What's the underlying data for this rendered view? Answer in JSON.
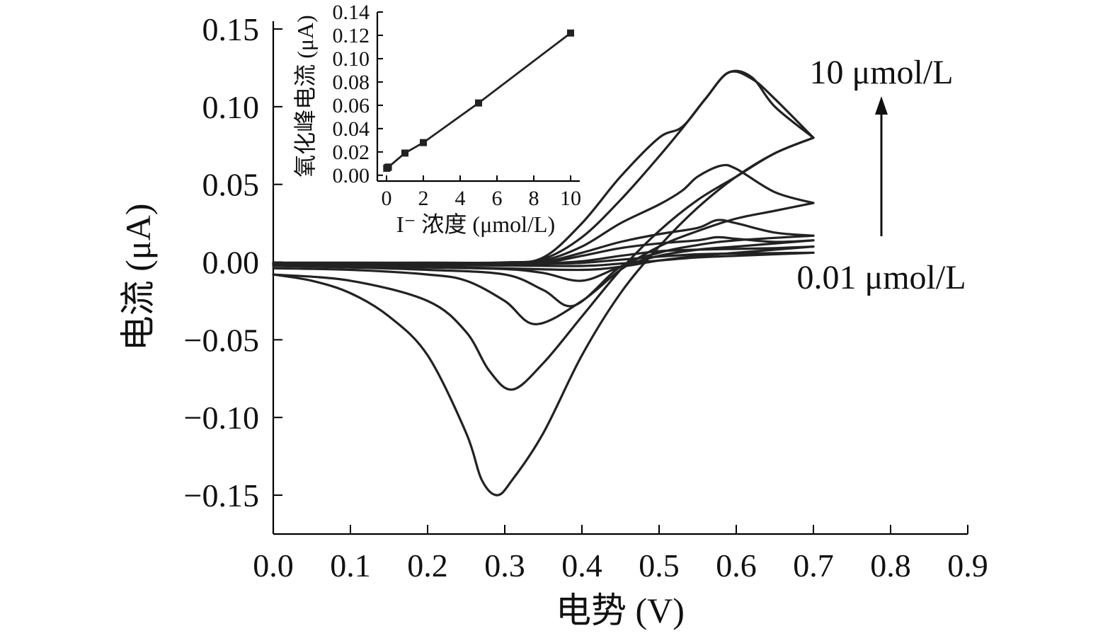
{
  "chart_data": [
    {
      "type": "line",
      "role": "main",
      "xlabel": "电势 (V)",
      "ylabel": "电流 (μA)",
      "xlim": [
        0.0,
        0.9
      ],
      "ylim": [
        -0.175,
        0.155
      ],
      "xticks": [
        "0.0",
        "0.1",
        "0.2",
        "0.3",
        "0.4",
        "0.5",
        "0.6",
        "0.7",
        "0.8",
        "0.9"
      ],
      "xtick_values": [
        0.0,
        0.1,
        0.2,
        0.3,
        0.4,
        0.5,
        0.6,
        0.7,
        0.8,
        0.9
      ],
      "yticks": [
        "0.15",
        "0.10",
        "0.05",
        "0.00",
        "−0.05",
        "−0.10",
        "−0.15"
      ],
      "ytick_values": [
        0.15,
        0.1,
        0.05,
        0.0,
        -0.05,
        -0.1,
        -0.15
      ],
      "annotations": {
        "top": "10 μmol/L",
        "bottom": "0.01 μmol/L"
      },
      "series": [
        {
          "forward": [
            [
              0,
              -0.001
            ],
            [
              0.1,
              -0.0012
            ],
            [
              0.2,
              -0.0012
            ],
            [
              0.3,
              -0.0012
            ],
            [
              0.35,
              -0.0011
            ],
            [
              0.4,
              -0.0005
            ],
            [
              0.45,
              0.0015
            ],
            [
              0.5,
              0.0035
            ],
            [
              0.55,
              0.005
            ],
            [
              0.6,
              0.0055
            ],
            [
              0.65,
              0.0058
            ],
            [
              0.7,
              0.006
            ]
          ],
          "reverse": [
            [
              0.7,
              0.006
            ],
            [
              0.6,
              0.004
            ],
            [
              0.55,
              0.003
            ],
            [
              0.5,
              0.001
            ],
            [
              0.45,
              -0.001
            ],
            [
              0.4,
              -0.0025
            ],
            [
              0.3,
              -0.0022
            ],
            [
              0.2,
              -0.002
            ],
            [
              0.1,
              -0.0018
            ],
            [
              0,
              -0.0015
            ]
          ]
        },
        {
          "forward": [
            [
              0,
              -0.001
            ],
            [
              0.1,
              -0.0011
            ],
            [
              0.2,
              -0.0011
            ],
            [
              0.3,
              -0.001
            ],
            [
              0.35,
              -0.0008
            ],
            [
              0.4,
              0.0005
            ],
            [
              0.45,
              0.004
            ],
            [
              0.5,
              0.007
            ],
            [
              0.55,
              0.008
            ],
            [
              0.6,
              0.0085
            ],
            [
              0.65,
              0.009
            ],
            [
              0.7,
              0.01
            ]
          ],
          "reverse": [
            [
              0.7,
              0.01
            ],
            [
              0.6,
              0.006
            ],
            [
              0.55,
              0.004
            ],
            [
              0.5,
              0.001
            ],
            [
              0.45,
              -0.003
            ],
            [
              0.4,
              -0.005
            ],
            [
              0.3,
              -0.004
            ],
            [
              0.2,
              -0.003
            ],
            [
              0.1,
              -0.0022
            ],
            [
              0,
              -0.0018
            ]
          ]
        },
        {
          "forward": [
            [
              0,
              -0.0009
            ],
            [
              0.1,
              -0.0009
            ],
            [
              0.2,
              -0.0009
            ],
            [
              0.3,
              -0.0008
            ],
            [
              0.35,
              -0.0004
            ],
            [
              0.4,
              0.004
            ],
            [
              0.45,
              0.009
            ],
            [
              0.5,
              0.012
            ],
            [
              0.55,
              0.014
            ],
            [
              0.575,
              0.016
            ],
            [
              0.6,
              0.015
            ],
            [
              0.65,
              0.013
            ],
            [
              0.7,
              0.014
            ]
          ],
          "reverse": [
            [
              0.7,
              0.014
            ],
            [
              0.6,
              0.01
            ],
            [
              0.55,
              0.008
            ],
            [
              0.5,
              0.004
            ],
            [
              0.45,
              -0.003
            ],
            [
              0.4,
              -0.012
            ],
            [
              0.35,
              -0.007
            ],
            [
              0.3,
              -0.0045
            ],
            [
              0.2,
              -0.0035
            ],
            [
              0.1,
              -0.0025
            ],
            [
              0,
              -0.002
            ]
          ]
        },
        {
          "forward": [
            [
              0,
              -0.0008
            ],
            [
              0.1,
              -0.0008
            ],
            [
              0.2,
              -0.0008
            ],
            [
              0.3,
              -0.0007
            ],
            [
              0.35,
              0
            ],
            [
              0.4,
              0.006
            ],
            [
              0.45,
              0.013
            ],
            [
              0.5,
              0.018
            ],
            [
              0.55,
              0.022
            ],
            [
              0.575,
              0.027
            ],
            [
              0.6,
              0.025
            ],
            [
              0.65,
              0.019
            ],
            [
              0.7,
              0.017
            ]
          ],
          "reverse": [
            [
              0.7,
              0.017
            ],
            [
              0.6,
              0.014
            ],
            [
              0.55,
              0.011
            ],
            [
              0.5,
              0.006
            ],
            [
              0.45,
              -0.003
            ],
            [
              0.39,
              -0.028
            ],
            [
              0.35,
              -0.018
            ],
            [
              0.3,
              -0.008
            ],
            [
              0.2,
              -0.005
            ],
            [
              0.1,
              -0.0035
            ],
            [
              0,
              -0.0025
            ]
          ]
        },
        {
          "forward": [
            [
              0,
              -0.0006
            ],
            [
              0.1,
              -0.0006
            ],
            [
              0.2,
              -0.0006
            ],
            [
              0.3,
              -0.0005
            ],
            [
              0.35,
              0.001
            ],
            [
              0.4,
              0.01
            ],
            [
              0.45,
              0.025
            ],
            [
              0.5,
              0.037
            ],
            [
              0.53,
              0.046
            ],
            [
              0.55,
              0.055
            ],
            [
              0.58,
              0.062
            ],
            [
              0.6,
              0.06
            ],
            [
              0.65,
              0.045
            ],
            [
              0.7,
              0.038
            ]
          ],
          "reverse": [
            [
              0.7,
              0.038
            ],
            [
              0.65,
              0.033
            ],
            [
              0.6,
              0.028
            ],
            [
              0.55,
              0.02
            ],
            [
              0.5,
              0.01
            ],
            [
              0.45,
              -0.005
            ],
            [
              0.4,
              -0.025
            ],
            [
              0.34,
              -0.04
            ],
            [
              0.3,
              -0.025
            ],
            [
              0.25,
              -0.012
            ],
            [
              0.2,
              -0.008
            ],
            [
              0.1,
              -0.005
            ],
            [
              0,
              -0.004
            ]
          ]
        },
        {
          "forward": [
            [
              0,
              -0.0005
            ],
            [
              0.1,
              -0.0005
            ],
            [
              0.2,
              -0.0005
            ],
            [
              0.3,
              -0.0003
            ],
            [
              0.35,
              0.002
            ],
            [
              0.4,
              0.016
            ],
            [
              0.45,
              0.04
            ],
            [
              0.5,
              0.068
            ],
            [
              0.53,
              0.086
            ],
            [
              0.56,
              0.105
            ],
            [
              0.59,
              0.122
            ],
            [
              0.62,
              0.119
            ],
            [
              0.65,
              0.1
            ],
            [
              0.7,
              0.08
            ]
          ],
          "reverse": [
            [
              0.7,
              0.08
            ],
            [
              0.65,
              0.07
            ],
            [
              0.6,
              0.055
            ],
            [
              0.55,
              0.04
            ],
            [
              0.5,
              0.02
            ],
            [
              0.45,
              -0.005
            ],
            [
              0.4,
              -0.035
            ],
            [
              0.35,
              -0.065
            ],
            [
              0.31,
              -0.082
            ],
            [
              0.28,
              -0.07
            ],
            [
              0.25,
              -0.045
            ],
            [
              0.2,
              -0.025
            ],
            [
              0.1,
              -0.012
            ],
            [
              0,
              -0.008
            ]
          ]
        },
        {
          "forward": [
            [
              0,
              -0.0004
            ],
            [
              0.1,
              -0.0004
            ],
            [
              0.2,
              -0.0004
            ],
            [
              0.3,
              -0.0002
            ],
            [
              0.35,
              0.003
            ],
            [
              0.4,
              0.025
            ],
            [
              0.45,
              0.055
            ],
            [
              0.5,
              0.08
            ],
            [
              0.53,
              0.087
            ],
            [
              0.56,
              0.105
            ],
            [
              0.59,
              0.122
            ],
            [
              0.62,
              0.118
            ],
            [
              0.65,
              0.105
            ],
            [
              0.7,
              0.08
            ]
          ],
          "reverse": [
            [
              0.7,
              0.08
            ],
            [
              0.65,
              0.07
            ],
            [
              0.6,
              0.055
            ],
            [
              0.55,
              0.035
            ],
            [
              0.5,
              0.01
            ],
            [
              0.45,
              -0.02
            ],
            [
              0.4,
              -0.06
            ],
            [
              0.35,
              -0.11
            ],
            [
              0.31,
              -0.14
            ],
            [
              0.29,
              -0.15
            ],
            [
              0.27,
              -0.14
            ],
            [
              0.25,
              -0.11
            ],
            [
              0.2,
              -0.06
            ],
            [
              0.15,
              -0.035
            ],
            [
              0.1,
              -0.02
            ],
            [
              0.05,
              -0.012
            ],
            [
              0,
              -0.008
            ]
          ]
        }
      ]
    },
    {
      "type": "line",
      "role": "inset",
      "xlabel": "I⁻ 浓度 (μmol/L)",
      "ylabel": "氧化峰电流 (μA)",
      "xlim": [
        -0.5,
        10.5
      ],
      "ylim": [
        -0.005,
        0.14
      ],
      "xticks": [
        "0",
        "2",
        "4",
        "6",
        "8",
        "10"
      ],
      "xtick_values": [
        0,
        2,
        4,
        6,
        8,
        10
      ],
      "yticks": [
        "0.00",
        "0.02",
        "0.04",
        "0.06",
        "0.08",
        "0.10",
        "0.12",
        "0.14"
      ],
      "ytick_values": [
        0.0,
        0.02,
        0.04,
        0.06,
        0.08,
        0.1,
        0.12,
        0.14
      ],
      "x": [
        0.01,
        0.05,
        0.1,
        1,
        2,
        5,
        10
      ],
      "y": [
        0.006,
        0.0065,
        0.007,
        0.019,
        0.028,
        0.062,
        0.122
      ]
    }
  ]
}
